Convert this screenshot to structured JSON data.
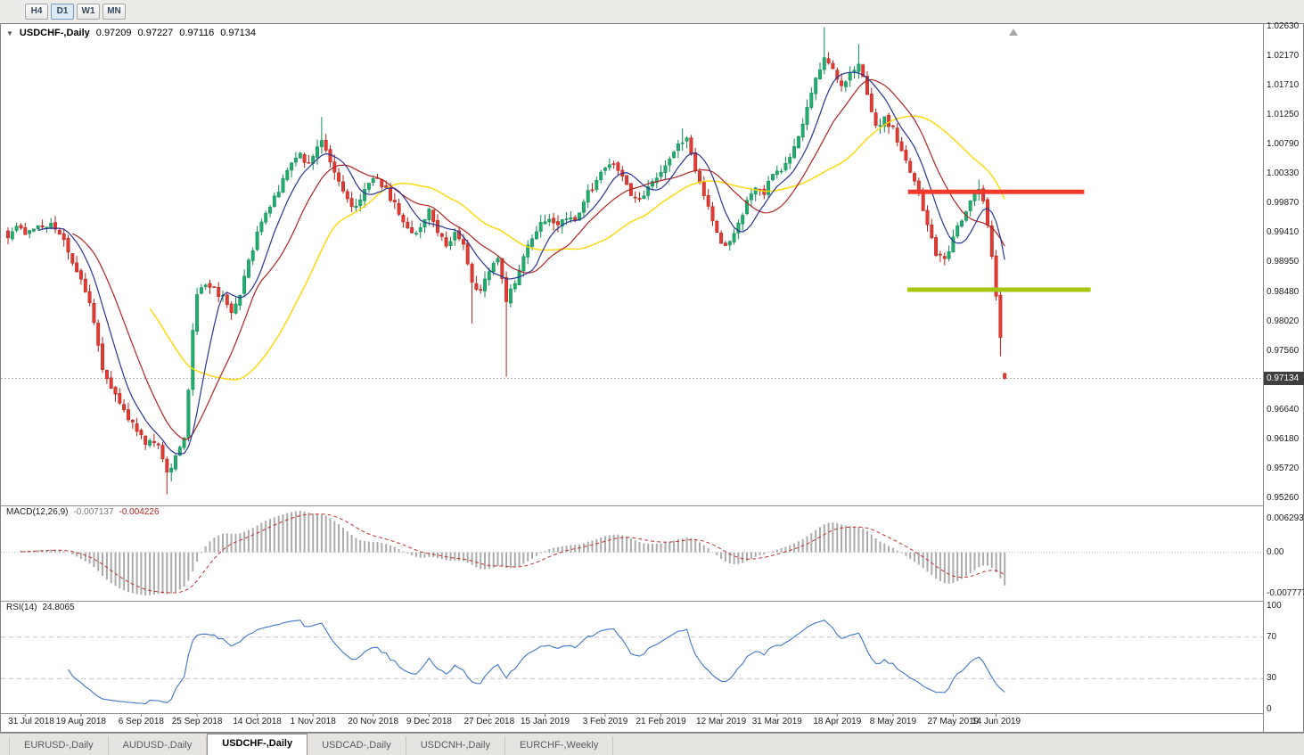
{
  "toolbar": {
    "timeframes": [
      {
        "label": "H4",
        "active": false
      },
      {
        "label": "D1",
        "active": true
      },
      {
        "label": "W1",
        "active": false
      },
      {
        "label": "MN",
        "active": false
      }
    ]
  },
  "window": {
    "title": {
      "marker": "▼",
      "symbol": "USDCHF-,Daily",
      "open": "0.97209",
      "high": "0.97227",
      "low": "0.97116",
      "close": "0.97134"
    }
  },
  "price_scale": {
    "labels": [
      "1.02630",
      "1.02170",
      "1.01710",
      "1.01250",
      "1.00790",
      "1.00330",
      "0.99870",
      "0.99410",
      "0.98950",
      "0.98480",
      "0.98020",
      "0.97560",
      "0.96640",
      "0.96180",
      "0.95720",
      "0.95260"
    ],
    "current_badge": "0.97134"
  },
  "macd_panel": {
    "label": "MACD(12,26,9)",
    "main_value": "-0.007137",
    "signal_value": "-0.004226",
    "scale_top": "0.006293",
    "scale_zero": "0.00",
    "scale_bottom": "-0.007777"
  },
  "rsi_panel": {
    "label": "RSI(14)",
    "value": "24.8065",
    "scale": [
      "100",
      "70",
      "30",
      "0"
    ]
  },
  "time_axis": {
    "labels": [
      "31 Jul 2018",
      "19 Aug 2018",
      "6 Sep 2018",
      "25 Sep 2018",
      "14 Oct 2018",
      "1 Nov 2018",
      "20 Nov 2018",
      "9 Dec 2018",
      "27 Dec 2018",
      "15 Jan 2019",
      "3 Feb 2019",
      "21 Feb 2019",
      "12 Mar 2019",
      "31 Mar 2019",
      "18 Apr 2019",
      "8 May 2019",
      "27 May 2019",
      "14 Jun 2019"
    ]
  },
  "tabs": [
    {
      "label": "EURUSD-,Daily",
      "active": false
    },
    {
      "label": "AUDUSD-,Daily",
      "active": false
    },
    {
      "label": "USDCHF-,Daily",
      "active": true
    },
    {
      "label": "USDCAD-,Daily",
      "active": false
    },
    {
      "label": "USDCNH-,Daily",
      "active": false
    },
    {
      "label": "EURCHF-,Weekly",
      "active": false
    }
  ],
  "chart_data": {
    "type": "candlestick",
    "symbol": "USDCHF",
    "timeframe": "Daily",
    "title": "USDCHF-,Daily",
    "bars": 233,
    "ylim": [
      0.9526,
      1.0263
    ],
    "seed": 42,
    "noise": 0.0011,
    "wick": 0.0012,
    "current_price": 0.97134,
    "last_candle": {
      "open": 0.97209,
      "high": 0.97227,
      "low": 0.97116,
      "close": 0.97134
    },
    "price_path": [
      [
        0,
        0.9932
      ],
      [
        2,
        0.995
      ],
      [
        4,
        0.9938
      ],
      [
        6,
        0.9952
      ],
      [
        8,
        0.9946
      ],
      [
        10,
        0.9955
      ],
      [
        12,
        0.9942
      ],
      [
        14,
        0.9915
      ],
      [
        16,
        0.988
      ],
      [
        18,
        0.9852
      ],
      [
        20,
        0.98
      ],
      [
        22,
        0.9725
      ],
      [
        24,
        0.97
      ],
      [
        26,
        0.9678
      ],
      [
        28,
        0.9652
      ],
      [
        30,
        0.9632
      ],
      [
        32,
        0.961
      ],
      [
        34,
        0.9618
      ],
      [
        36,
        0.959
      ],
      [
        37,
        0.9565
      ],
      [
        38,
        0.9575
      ],
      [
        40,
        0.9608
      ],
      [
        41,
        0.9618
      ],
      [
        42,
        0.97
      ],
      [
        43,
        0.979
      ],
      [
        44,
        0.9845
      ],
      [
        46,
        0.9858
      ],
      [
        48,
        0.9852
      ],
      [
        50,
        0.9838
      ],
      [
        52,
        0.9812
      ],
      [
        54,
        0.9845
      ],
      [
        56,
        0.9896
      ],
      [
        58,
        0.994
      ],
      [
        60,
        0.9972
      ],
      [
        62,
        0.9998
      ],
      [
        64,
        1.0022
      ],
      [
        66,
        1.0048
      ],
      [
        68,
        1.0062
      ],
      [
        70,
        1.0048
      ],
      [
        72,
        1.0075
      ],
      [
        73,
        1.0088
      ],
      [
        74,
        1.0068
      ],
      [
        76,
        1.0035
      ],
      [
        78,
        1.0002
      ],
      [
        80,
        0.9978
      ],
      [
        82,
        0.9995
      ],
      [
        84,
        1.0018
      ],
      [
        86,
        1.0025
      ],
      [
        88,
        1.0008
      ],
      [
        90,
        0.9985
      ],
      [
        92,
        0.9958
      ],
      [
        94,
        0.9938
      ],
      [
        96,
        0.9952
      ],
      [
        98,
        0.9975
      ],
      [
        100,
        0.9942
      ],
      [
        102,
        0.9918
      ],
      [
        104,
        0.9945
      ],
      [
        106,
        0.9928
      ],
      [
        108,
        0.9862
      ],
      [
        110,
        0.9852
      ],
      [
        112,
        0.9882
      ],
      [
        114,
        0.9906
      ],
      [
        116,
        0.9838
      ],
      [
        118,
        0.9862
      ],
      [
        120,
        0.9902
      ],
      [
        122,
        0.9932
      ],
      [
        124,
        0.9955
      ],
      [
        126,
        0.9962
      ],
      [
        128,
        0.9948
      ],
      [
        130,
        0.9968
      ],
      [
        132,
        0.9955
      ],
      [
        134,
        0.9992
      ],
      [
        136,
        1.0012
      ],
      [
        138,
        1.0032
      ],
      [
        140,
        1.0052
      ],
      [
        142,
        1.0042
      ],
      [
        144,
        1.0012
      ],
      [
        146,
        0.9995
      ],
      [
        148,
        1.0002
      ],
      [
        150,
        1.0022
      ],
      [
        152,
        1.0038
      ],
      [
        154,
        1.0052
      ],
      [
        156,
        1.0082
      ],
      [
        158,
        1.0092
      ],
      [
        160,
        1.004
      ],
      [
        162,
        0.9998
      ],
      [
        164,
        0.9958
      ],
      [
        166,
        0.9922
      ],
      [
        168,
        0.9928
      ],
      [
        170,
        0.9958
      ],
      [
        172,
        0.9988
      ],
      [
        174,
        1.0012
      ],
      [
        176,
        1.0005
      ],
      [
        178,
        1.0028
      ],
      [
        180,
        1.0038
      ],
      [
        182,
        1.0058
      ],
      [
        184,
        1.0092
      ],
      [
        186,
        1.0138
      ],
      [
        188,
        1.0182
      ],
      [
        190,
        1.0212
      ],
      [
        192,
        1.0192
      ],
      [
        194,
        1.0172
      ],
      [
        196,
        1.0188
      ],
      [
        198,
        1.0208
      ],
      [
        200,
        1.0152
      ],
      [
        202,
        1.0105
      ],
      [
        204,
        1.0122
      ],
      [
        206,
        1.0102
      ],
      [
        208,
        1.0068
      ],
      [
        210,
        1.0032
      ],
      [
        212,
        1.0002
      ],
      [
        214,
        0.9952
      ],
      [
        216,
        0.9906
      ],
      [
        218,
        0.9896
      ],
      [
        220,
        0.9932
      ],
      [
        222,
        0.9962
      ],
      [
        224,
        0.9996
      ],
      [
        226,
        1.0008
      ],
      [
        227,
        0.9988
      ],
      [
        228,
        0.9952
      ],
      [
        229,
        0.9905
      ],
      [
        230,
        0.9845
      ],
      [
        231,
        0.9772
      ],
      [
        232,
        0.9713
      ]
    ],
    "wick_overrides": [
      {
        "i": 37,
        "low": 0.9532
      },
      {
        "i": 38,
        "low": 0.9552
      },
      {
        "i": 73,
        "high": 1.0122
      },
      {
        "i": 108,
        "low": 0.9799
      },
      {
        "i": 116,
        "low": 0.9716
      },
      {
        "i": 157,
        "high": 1.0104
      },
      {
        "i": 190,
        "high": 1.0262
      },
      {
        "i": 198,
        "high": 1.0236
      },
      {
        "i": 226,
        "high": 1.0024
      },
      {
        "i": 231,
        "low": 0.9748
      }
    ],
    "hlines": [
      {
        "name": "resistance-line",
        "price": 1.0005,
        "color": "#f3392b",
        "from_bar": 209.5,
        "to_bar": 250.5,
        "thickness": 5
      },
      {
        "name": "support-line",
        "price": 0.9852,
        "color": "#a6c612",
        "from_bar": 209.3,
        "to_bar": 252,
        "thickness": 5
      }
    ],
    "moving_averages": [
      {
        "name": "slow-ma",
        "period": 34,
        "color": "#ffd700",
        "width": 1.4
      },
      {
        "name": "mid-ma",
        "period": 16,
        "color": "#b22222",
        "width": 1.2
      },
      {
        "name": "fast-ma",
        "period": 8,
        "color": "#283593",
        "width": 1.2
      }
    ],
    "candle_colors": {
      "up": "#22ac6e",
      "up_border": "#0c8a52",
      "down": "#e23b34",
      "down_border": "#b32019"
    },
    "macd": {
      "fast": 12,
      "slow": 26,
      "signal": 9,
      "hist_color": "#ababab",
      "signal_color": "#c03030"
    },
    "rsi": {
      "period": 14,
      "color": "#3f76c8",
      "levels": [
        70,
        30
      ]
    },
    "time_ticks": [
      4,
      17,
      31,
      44,
      58,
      71,
      85,
      98,
      112,
      125,
      139,
      152,
      166,
      179,
      193,
      206,
      220,
      230
    ]
  }
}
